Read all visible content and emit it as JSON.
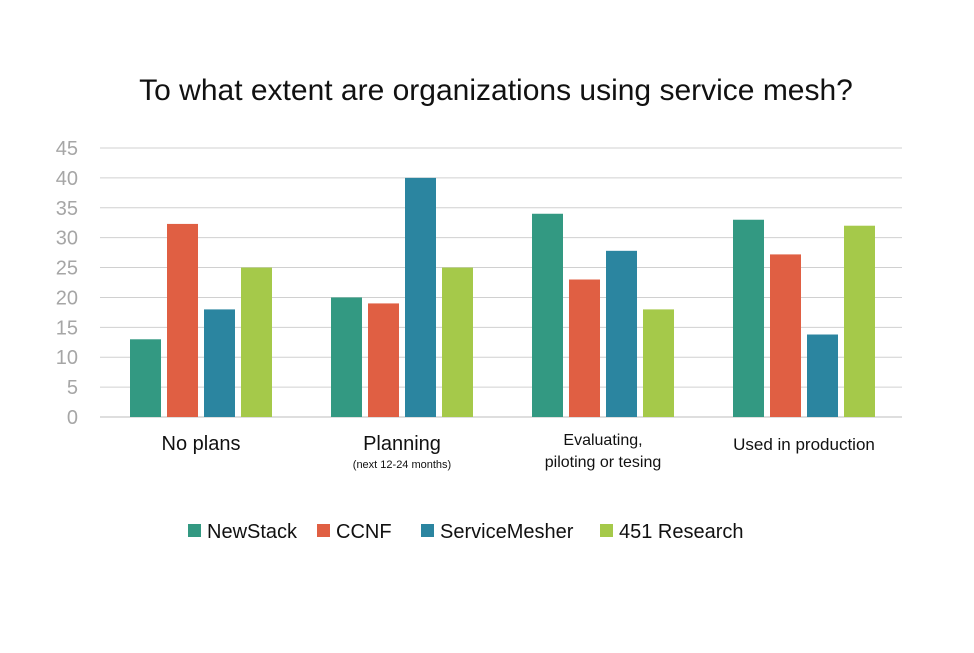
{
  "colors": {
    "NewStack": "#339982",
    "CCNF": "#e05f43",
    "ServiceMesher": "#2b85a0",
    "451 Research": "#a5c94a"
  },
  "chart_data": {
    "type": "bar",
    "title": "To what extent are organizations using service mesh?",
    "xlabel": "",
    "ylabel": "",
    "ylim": [
      0,
      45
    ],
    "yticks": [
      0,
      5,
      10,
      15,
      20,
      25,
      30,
      35,
      40,
      45
    ],
    "grid": true,
    "legend": "bottom",
    "categories": [
      {
        "label": [
          "No plans"
        ],
        "sublabel": ""
      },
      {
        "label": [
          "Planning"
        ],
        "sublabel": "(next 12-24 months)"
      },
      {
        "label": [
          "Evaluating,",
          "piloting or tesing"
        ],
        "sublabel": ""
      },
      {
        "label": [
          "Used in production"
        ],
        "sublabel": ""
      }
    ],
    "series": [
      {
        "name": "NewStack",
        "values": [
          13,
          20,
          34,
          33
        ]
      },
      {
        "name": "CCNF",
        "values": [
          32.3,
          19,
          23,
          27.2
        ]
      },
      {
        "name": "ServiceMesher",
        "values": [
          18,
          40,
          27.8,
          13.8
        ]
      },
      {
        "name": "451 Research",
        "values": [
          25,
          25,
          18,
          32
        ]
      }
    ]
  }
}
